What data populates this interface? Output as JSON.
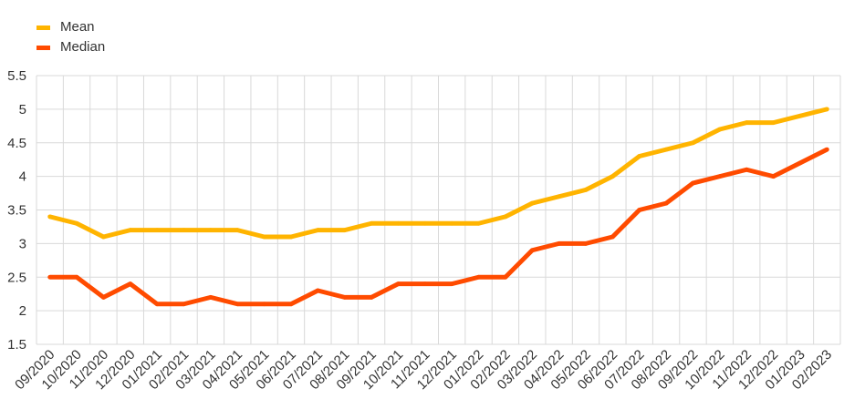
{
  "chart_data": {
    "type": "line",
    "categories": [
      "09/2020",
      "10/2020",
      "11/2020",
      "12/2020",
      "01/2021",
      "02/2021",
      "03/2021",
      "04/2021",
      "05/2021",
      "06/2021",
      "07/2021",
      "08/2021",
      "09/2021",
      "10/2021",
      "11/2021",
      "12/2021",
      "01/2022",
      "02/2022",
      "03/2022",
      "04/2022",
      "05/2022",
      "06/2022",
      "07/2022",
      "08/2022",
      "09/2022",
      "10/2022",
      "11/2022",
      "12/2022",
      "01/2023",
      "02/2023"
    ],
    "series": [
      {
        "name": "Mean",
        "color": "#FFB400",
        "values": [
          3.4,
          3.3,
          3.1,
          3.2,
          3.2,
          3.2,
          3.2,
          3.2,
          3.1,
          3.1,
          3.2,
          3.2,
          3.3,
          3.3,
          3.3,
          3.3,
          3.3,
          3.4,
          3.6,
          3.7,
          3.8,
          4.0,
          4.3,
          4.4,
          4.5,
          4.7,
          4.8,
          4.8,
          4.9,
          5.0
        ]
      },
      {
        "name": "Median",
        "color": "#FF4B00",
        "values": [
          2.5,
          2.5,
          2.2,
          2.4,
          2.1,
          2.1,
          2.2,
          2.1,
          2.1,
          2.1,
          2.3,
          2.2,
          2.2,
          2.4,
          2.4,
          2.4,
          2.5,
          2.5,
          2.9,
          3.0,
          3.0,
          3.1,
          3.5,
          3.6,
          3.9,
          4.0,
          4.1,
          4.0,
          4.2,
          4.4
        ]
      }
    ],
    "ylim": [
      1.5,
      5.5
    ],
    "yticks": [
      1.5,
      2,
      2.5,
      3,
      3.5,
      4,
      4.5,
      5,
      5.5
    ],
    "grid": true,
    "gridColor": "#D9D9D9",
    "legend": "top-left"
  }
}
